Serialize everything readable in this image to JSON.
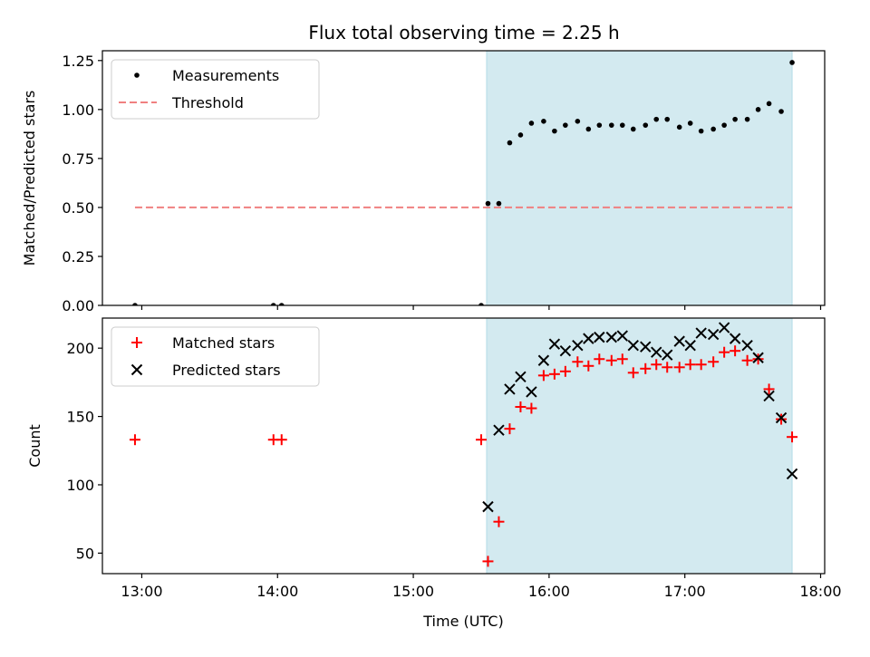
{
  "chart_data": [
    {
      "type": "scatter",
      "title": "Flux total observing time = 2.25 h",
      "xlabel": "",
      "ylabel": "Matched/Predicted stars",
      "ylim": [
        0,
        1.3
      ],
      "xlim_hours_utc": [
        12.71,
        18.03
      ],
      "x_ticks": [
        "13:00",
        "14:00",
        "15:00",
        "16:00",
        "17:00",
        "18:00"
      ],
      "x_tick_values": [
        13,
        14,
        15,
        16,
        17,
        18
      ],
      "x_ticks_labeled": false,
      "y_ticks": [
        "0.00",
        "0.25",
        "0.50",
        "0.75",
        "1.00",
        "1.25"
      ],
      "y_tick_values": [
        0,
        0.25,
        0.5,
        0.75,
        1.0,
        1.25
      ],
      "shaded_interval_hours_utc": [
        15.54,
        17.79
      ],
      "shade_color": "#d3eaf0",
      "legend_position": "top-left",
      "legend": [
        {
          "label": "Measurements",
          "marker": "dot",
          "color": "#000000"
        },
        {
          "label": "Threshold",
          "marker": "dashed-line",
          "color": "#f08080"
        }
      ],
      "threshold": {
        "value": 0.5,
        "x_range_hours_utc": [
          12.95,
          17.79
        ],
        "color": "#f08080"
      },
      "series": [
        {
          "name": "Measurements",
          "color": "#000000",
          "x_hours_utc": [
            12.95,
            13.97,
            14.03,
            15.5,
            15.55,
            15.63,
            15.71,
            15.79,
            15.87,
            15.96,
            16.04,
            16.12,
            16.21,
            16.29,
            16.37,
            16.46,
            16.54,
            16.62,
            16.71,
            16.79,
            16.87,
            16.96,
            17.04,
            17.12,
            17.21,
            17.29,
            17.37,
            17.46,
            17.54,
            17.62,
            17.71,
            17.79
          ],
          "y": [
            0.0,
            0.0,
            0.0,
            0.0,
            0.52,
            0.52,
            0.83,
            0.87,
            0.93,
            0.94,
            0.89,
            0.92,
            0.94,
            0.9,
            0.92,
            0.92,
            0.92,
            0.9,
            0.92,
            0.95,
            0.95,
            0.91,
            0.93,
            0.89,
            0.9,
            0.92,
            0.95,
            0.95,
            1.0,
            1.03,
            0.99,
            1.24
          ]
        }
      ]
    },
    {
      "type": "scatter",
      "title": "",
      "xlabel": "Time (UTC)",
      "ylabel": "Count",
      "ylim": [
        35,
        222
      ],
      "xlim_hours_utc": [
        12.71,
        18.03
      ],
      "x_ticks": [
        "13:00",
        "14:00",
        "15:00",
        "16:00",
        "17:00",
        "18:00"
      ],
      "x_tick_values": [
        13,
        14,
        15,
        16,
        17,
        18
      ],
      "x_ticks_labeled": true,
      "y_ticks": [
        "50",
        "100",
        "150",
        "200"
      ],
      "y_tick_values": [
        50,
        100,
        150,
        200
      ],
      "shaded_interval_hours_utc": [
        15.54,
        17.79
      ],
      "shade_color": "#d3eaf0",
      "legend_position": "top-left",
      "legend": [
        {
          "label": "Matched stars",
          "marker": "plus",
          "color": "#ff0000"
        },
        {
          "label": "Predicted stars",
          "marker": "x",
          "color": "#000000"
        }
      ],
      "series": [
        {
          "name": "Matched stars",
          "marker": "plus",
          "color": "#ff0000",
          "x_hours_utc": [
            12.95,
            13.97,
            14.03,
            15.5,
            15.55,
            15.63,
            15.71,
            15.79,
            15.87,
            15.96,
            16.04,
            16.12,
            16.21,
            16.29,
            16.37,
            16.46,
            16.54,
            16.62,
            16.71,
            16.79,
            16.87,
            16.96,
            17.04,
            17.12,
            17.21,
            17.29,
            17.37,
            17.46,
            17.54,
            17.62,
            17.71,
            17.79
          ],
          "y": [
            133,
            133,
            133,
            133,
            44,
            73,
            141,
            157,
            156,
            180,
            181,
            183,
            190,
            187,
            192,
            191,
            192,
            182,
            185,
            188,
            186,
            186,
            188,
            188,
            190,
            197,
            198,
            191,
            192,
            170,
            148,
            135
          ]
        },
        {
          "name": "Predicted stars",
          "marker": "x",
          "color": "#000000",
          "x_hours_utc": [
            15.55,
            15.63,
            15.71,
            15.79,
            15.87,
            15.96,
            16.04,
            16.12,
            16.21,
            16.29,
            16.37,
            16.46,
            16.54,
            16.62,
            16.71,
            16.79,
            16.87,
            16.96,
            17.04,
            17.12,
            17.21,
            17.29,
            17.37,
            17.46,
            17.54,
            17.62,
            17.71,
            17.79
          ],
          "y": [
            84,
            140,
            170,
            179,
            168,
            191,
            203,
            198,
            202,
            207,
            208,
            208,
            209,
            202,
            201,
            197,
            195,
            205,
            202,
            211,
            210,
            215,
            207,
            202,
            193,
            165,
            149,
            108
          ]
        }
      ]
    }
  ]
}
